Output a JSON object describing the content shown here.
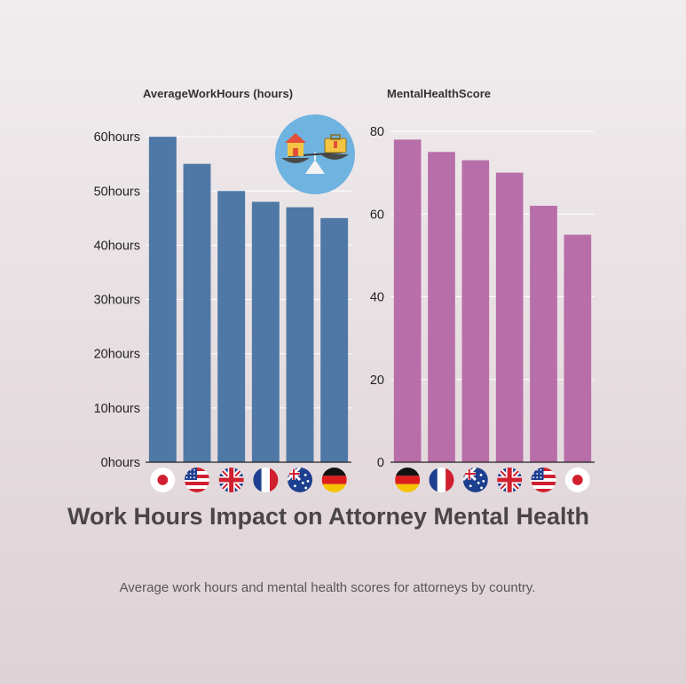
{
  "title": "Work Hours Impact on Attorney Mental Health",
  "subtitle": "Average work hours and mental health scores for attorneys by country.",
  "colors": {
    "hours": "#4f78a6",
    "health": "#b86ea8",
    "flag_red": "#d0202f",
    "flag_blue": "#1d3f8f"
  },
  "badge_icon": "work-life-balance-scale-icon",
  "chart_data": [
    {
      "type": "bar",
      "title": "AverageWorkHours (hours)",
      "categories": [
        "Japan",
        "USA",
        "UK",
        "France",
        "Australia",
        "Germany"
      ],
      "flag_icons": [
        "japan-flag-icon",
        "usa-flag-icon",
        "uk-flag-icon",
        "france-flag-icon",
        "australia-flag-icon",
        "germany-flag-icon"
      ],
      "values": [
        60,
        55,
        50,
        48,
        47,
        45
      ],
      "ylim": [
        0,
        61
      ],
      "yticks": [
        0,
        10,
        20,
        30,
        40,
        50,
        60
      ],
      "ytick_labels": [
        "0hours",
        "10hours",
        "20hours",
        "30hours",
        "40hours",
        "50hours",
        "60hours"
      ],
      "grid": true,
      "legend": "none"
    },
    {
      "type": "bar",
      "title": "MentalHealthScore",
      "categories": [
        "Germany",
        "France",
        "Australia",
        "UK",
        "USA",
        "Japan"
      ],
      "flag_icons": [
        "germany-flag-icon",
        "france-flag-icon",
        "australia-flag-icon",
        "uk-flag-icon",
        "usa-flag-icon",
        "japan-flag-icon"
      ],
      "values": [
        78,
        75,
        73,
        70,
        62,
        55
      ],
      "ylim": [
        0,
        80
      ],
      "yticks": [
        0,
        20,
        40,
        60,
        80
      ],
      "ytick_labels": [
        "0",
        "20",
        "40",
        "60",
        "80"
      ],
      "grid": true,
      "legend": "none"
    }
  ]
}
